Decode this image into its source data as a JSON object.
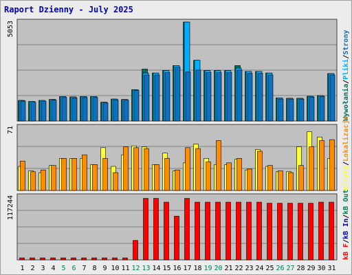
{
  "title": "Raport Dzienny -  July 2025",
  "colors": {
    "background": "#ececec",
    "plot_bg": "#c0c0c0",
    "grid": "#808080",
    "title": "#0000c0",
    "hits": "#006f5f",
    "files": "#00b0ff",
    "pages": "#1070c0",
    "visits": "#ffff33",
    "sites": "#ff8c00",
    "kbytes": "#ff0000",
    "weekend_day": "#00805a",
    "weekday": "#000000"
  },
  "chart_data": [
    {
      "type": "bar",
      "panel": "top",
      "y_tick_label": "5053",
      "ylim": [
        0,
        5053
      ],
      "categories": [
        "1",
        "2",
        "3",
        "4",
        "5",
        "6",
        "7",
        "8",
        "9",
        "10",
        "11",
        "12",
        "13",
        "14",
        "15",
        "16",
        "17",
        "18",
        "19",
        "20",
        "21",
        "22",
        "23",
        "24",
        "25",
        "26",
        "27",
        "28",
        "29",
        "30",
        "31"
      ],
      "legend": [
        "Wywołania",
        "Pliki",
        "Strony"
      ],
      "series": [
        {
          "name": "Wywołania",
          "values": [
            1050,
            1000,
            1050,
            1100,
            1250,
            1230,
            1250,
            1250,
            960,
            1120,
            1100,
            1600,
            2650,
            2450,
            2580,
            2830,
            5050,
            3100,
            2580,
            2580,
            2580,
            2830,
            2530,
            2530,
            2450,
            1180,
            1160,
            1160,
            1260,
            1300,
            2420
          ]
        },
        {
          "name": "Pliki",
          "values": [
            1050,
            1000,
            1050,
            1100,
            1250,
            1230,
            1250,
            1250,
            960,
            1120,
            1100,
            1600,
            2450,
            2450,
            2580,
            2830,
            5050,
            3100,
            2580,
            2580,
            2580,
            2700,
            2530,
            2530,
            2450,
            1180,
            1160,
            1160,
            1260,
            1300,
            2420
          ]
        },
        {
          "name": "Strony",
          "values": [
            1020,
            950,
            1000,
            1070,
            1200,
            1180,
            1200,
            1200,
            920,
            1080,
            1060,
            1560,
            2350,
            2350,
            2480,
            2750,
            2500,
            2600,
            2480,
            2480,
            2480,
            2600,
            2430,
            2430,
            2350,
            1120,
            1120,
            1120,
            1220,
            1250,
            2350
          ]
        }
      ]
    },
    {
      "type": "bar",
      "panel": "middle",
      "y_tick_label": "71",
      "ylim": [
        0,
        71
      ],
      "categories": [
        "1",
        "2",
        "3",
        "4",
        "5",
        "6",
        "7",
        "8",
        "9",
        "10",
        "11",
        "12",
        "13",
        "14",
        "15",
        "16",
        "17",
        "18",
        "19",
        "20",
        "21",
        "22",
        "23",
        "24",
        "25",
        "26",
        "27",
        "28",
        "29",
        "30",
        "31"
      ],
      "legend": [
        "Wizyty",
        "Lokalizacje"
      ],
      "series": [
        {
          "name": "Wizyty",
          "values": [
            27,
            22,
            20,
            28,
            36,
            36,
            36,
            29,
            48,
            27,
            40,
            50,
            49,
            29,
            42,
            22,
            31,
            52,
            36,
            29,
            29,
            35,
            23,
            46,
            27,
            21,
            21,
            49,
            66,
            60,
            36
          ]
        },
        {
          "name": "Lokalizacje",
          "values": [
            33,
            21,
            23,
            28,
            36,
            36,
            40,
            29,
            36,
            20,
            49,
            48,
            47,
            29,
            36,
            23,
            48,
            47,
            32,
            56,
            31,
            36,
            24,
            44,
            28,
            22,
            20,
            28,
            49,
            56,
            57
          ]
        }
      ]
    },
    {
      "type": "bar",
      "panel": "bottom",
      "y_tick_label": "117244",
      "ylim": [
        0,
        117244
      ],
      "categories": [
        "1",
        "2",
        "3",
        "4",
        "5",
        "6",
        "7",
        "8",
        "9",
        "10",
        "11",
        "12",
        "13",
        "14",
        "15",
        "16",
        "17",
        "18",
        "19",
        "20",
        "21",
        "22",
        "23",
        "24",
        "25",
        "26",
        "27",
        "28",
        "29",
        "30",
        "31"
      ],
      "legend": [
        "kB F",
        "kB In",
        "kB Out"
      ],
      "series": [
        {
          "name": "kB F",
          "values": [
            3700,
            3700,
            3700,
            3700,
            3700,
            3700,
            3700,
            3700,
            3700,
            3700,
            3700,
            36000,
            114000,
            114000,
            107000,
            81000,
            114000,
            107000,
            107000,
            107000,
            107000,
            107000,
            107000,
            107000,
            105000,
            105000,
            105000,
            105000,
            105000,
            107000,
            107000
          ]
        }
      ]
    }
  ],
  "x_axis": {
    "labels": [
      "1",
      "2",
      "3",
      "4",
      "5",
      "6",
      "7",
      "8",
      "9",
      "10",
      "11",
      "12",
      "13",
      "14",
      "15",
      "16",
      "17",
      "18",
      "19",
      "20",
      "21",
      "22",
      "23",
      "24",
      "25",
      "26",
      "27",
      "28",
      "29",
      "30",
      "31"
    ],
    "weekend_days": [
      "5",
      "6",
      "12",
      "13",
      "19",
      "20",
      "26",
      "27"
    ]
  },
  "right_legends": {
    "top": [
      {
        "text": "Wywołania",
        "color": "#006f5f"
      },
      {
        "text": "Pliki",
        "color": "#00b0ff"
      },
      {
        "text": "Strony",
        "color": "#1070c0"
      }
    ],
    "middle": [
      {
        "text": "Wizyty",
        "color": "#ffff33"
      },
      {
        "text": "Lokalizacje",
        "color": "#ff8c00"
      }
    ],
    "bottom": [
      {
        "text": "kB F",
        "color": "#ff0000"
      },
      {
        "text": "kB In",
        "color": "#0000c0"
      },
      {
        "text": "kB Out",
        "color": "#00805a"
      }
    ]
  }
}
